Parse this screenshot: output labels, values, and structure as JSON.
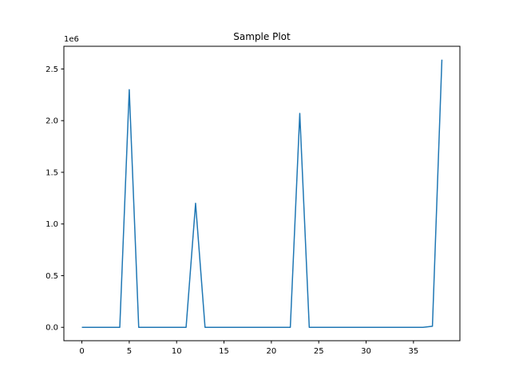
{
  "chart_data": {
    "type": "line",
    "title": "Sample Plot",
    "xlabel": "",
    "ylabel": "",
    "offset_label": "1e6",
    "xlim": [
      -1.9,
      39.9
    ],
    "ylim": [
      -129500,
      2719500
    ],
    "x_ticks": [
      0,
      5,
      10,
      15,
      20,
      25,
      30,
      35
    ],
    "y_ticks": [
      0.0,
      0.5,
      1.0,
      1.5,
      2.0,
      2.5
    ],
    "y_tick_labels": [
      "0.0",
      "0.5",
      "1.0",
      "1.5",
      "2.0",
      "2.5"
    ],
    "grid": false,
    "line_color": "#1f77b4",
    "series": [
      {
        "x": [
          0,
          1,
          2,
          3,
          4,
          5,
          6,
          7,
          8,
          9,
          10,
          11,
          12,
          13,
          14,
          15,
          16,
          17,
          18,
          19,
          20,
          21,
          22,
          23,
          24,
          25,
          26,
          27,
          28,
          29,
          30,
          31,
          32,
          33,
          34,
          35,
          36,
          37,
          38
        ],
        "values": [
          0,
          0,
          0,
          0,
          0,
          2300000,
          0,
          0,
          0,
          0,
          0,
          0,
          1200000,
          0,
          0,
          0,
          0,
          0,
          0,
          0,
          0,
          0,
          0,
          2070000,
          0,
          0,
          0,
          0,
          0,
          0,
          0,
          0,
          0,
          0,
          0,
          0,
          0,
          10000,
          2590000
        ]
      }
    ]
  }
}
